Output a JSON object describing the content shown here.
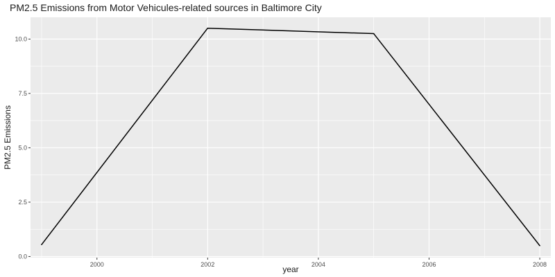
{
  "chart_data": {
    "type": "line",
    "title": "PM2.5 Emissions from Motor Vehicules-related sources in Baltimore City",
    "xlabel": "year",
    "ylabel": "PM2.5 Emissions",
    "x": [
      1999,
      2002,
      2005,
      2008
    ],
    "series": [
      {
        "values": [
          0.55,
          10.5,
          10.25,
          0.5
        ]
      }
    ],
    "xlim": [
      1998.8,
      2008.2
    ],
    "ylim": [
      -0.05,
      11.0
    ],
    "xticks": [
      2000,
      2002,
      2004,
      2006,
      2008
    ],
    "yticks": [
      0.0,
      2.5,
      5.0,
      7.5,
      10.0
    ],
    "ytick_labels": [
      "0.0",
      "2.5",
      "5.0",
      "7.5",
      "10.0"
    ],
    "grid": true,
    "legend": "none",
    "colors": {
      "panel": "#ebebeb",
      "grid": "#ffffff",
      "line": "#000000"
    }
  }
}
